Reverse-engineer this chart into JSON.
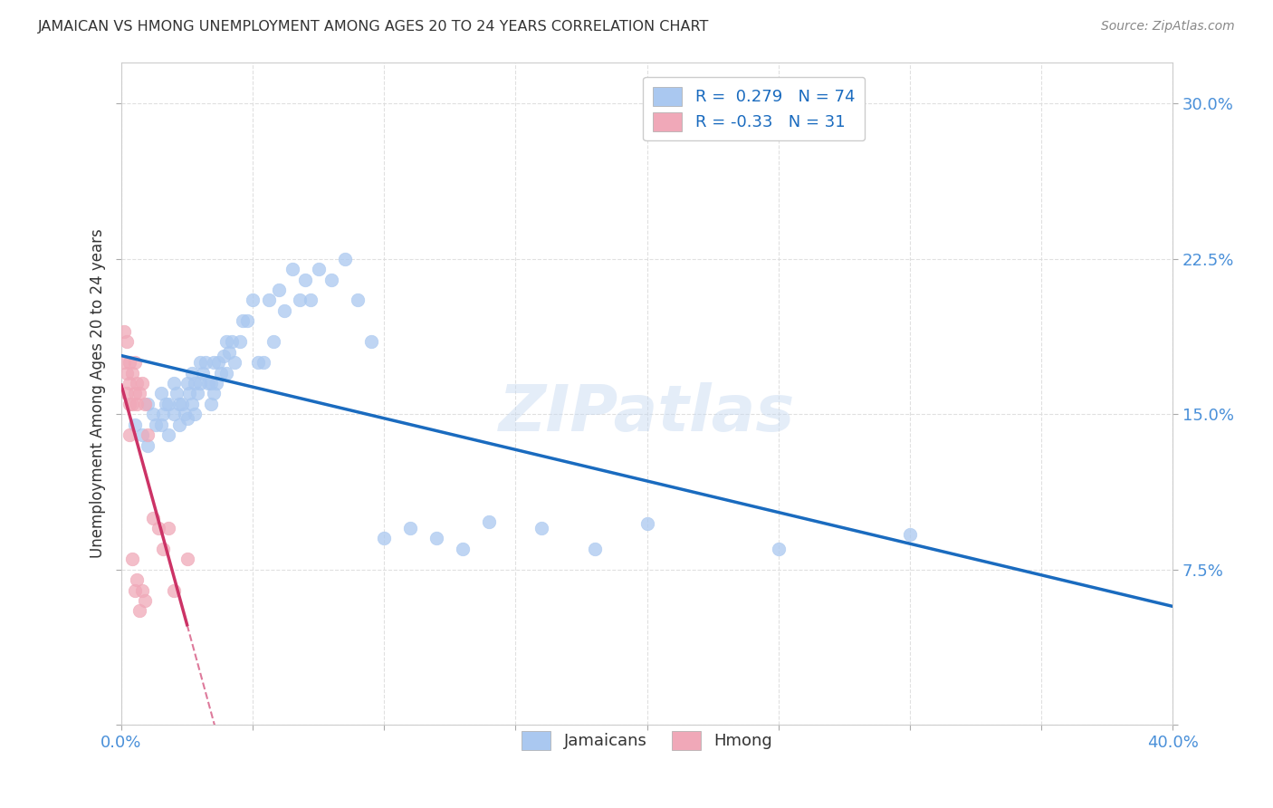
{
  "title": "JAMAICAN VS HMONG UNEMPLOYMENT AMONG AGES 20 TO 24 YEARS CORRELATION CHART",
  "source": "Source: ZipAtlas.com",
  "ylabel": "Unemployment Among Ages 20 to 24 years",
  "xlim": [
    0.0,
    0.4
  ],
  "ylim": [
    0.0,
    0.32
  ],
  "xticks": [
    0.0,
    0.05,
    0.1,
    0.15,
    0.2,
    0.25,
    0.3,
    0.35,
    0.4
  ],
  "yticks": [
    0.0,
    0.075,
    0.15,
    0.225,
    0.3
  ],
  "jamaican_R": 0.279,
  "jamaican_N": 74,
  "hmong_R": -0.33,
  "hmong_N": 31,
  "jamaican_color": "#aac8f0",
  "hmong_color": "#f0a8b8",
  "regression_blue": "#1a6bbf",
  "regression_pink": "#cc3366",
  "jamaican_x": [
    0.005,
    0.008,
    0.01,
    0.01,
    0.012,
    0.013,
    0.015,
    0.015,
    0.016,
    0.017,
    0.018,
    0.018,
    0.02,
    0.02,
    0.021,
    0.022,
    0.022,
    0.023,
    0.024,
    0.025,
    0.025,
    0.026,
    0.027,
    0.027,
    0.028,
    0.028,
    0.029,
    0.03,
    0.03,
    0.031,
    0.032,
    0.033,
    0.034,
    0.034,
    0.035,
    0.035,
    0.036,
    0.037,
    0.038,
    0.039,
    0.04,
    0.04,
    0.041,
    0.042,
    0.043,
    0.045,
    0.046,
    0.048,
    0.05,
    0.052,
    0.054,
    0.056,
    0.058,
    0.06,
    0.062,
    0.065,
    0.068,
    0.07,
    0.072,
    0.075,
    0.08,
    0.085,
    0.09,
    0.095,
    0.1,
    0.11,
    0.12,
    0.13,
    0.14,
    0.16,
    0.18,
    0.2,
    0.25,
    0.3
  ],
  "jamaican_y": [
    0.145,
    0.14,
    0.155,
    0.135,
    0.15,
    0.145,
    0.16,
    0.145,
    0.15,
    0.155,
    0.155,
    0.14,
    0.165,
    0.15,
    0.16,
    0.155,
    0.145,
    0.155,
    0.15,
    0.165,
    0.148,
    0.16,
    0.17,
    0.155,
    0.165,
    0.15,
    0.16,
    0.175,
    0.165,
    0.17,
    0.175,
    0.165,
    0.165,
    0.155,
    0.175,
    0.16,
    0.165,
    0.175,
    0.17,
    0.178,
    0.185,
    0.17,
    0.18,
    0.185,
    0.175,
    0.185,
    0.195,
    0.195,
    0.205,
    0.175,
    0.175,
    0.205,
    0.185,
    0.21,
    0.2,
    0.22,
    0.205,
    0.215,
    0.205,
    0.22,
    0.215,
    0.225,
    0.205,
    0.185,
    0.09,
    0.095,
    0.09,
    0.085,
    0.098,
    0.095,
    0.085,
    0.097,
    0.085,
    0.092
  ],
  "hmong_x": [
    0.001,
    0.001,
    0.002,
    0.002,
    0.002,
    0.003,
    0.003,
    0.003,
    0.003,
    0.004,
    0.004,
    0.004,
    0.005,
    0.005,
    0.005,
    0.006,
    0.006,
    0.006,
    0.007,
    0.007,
    0.008,
    0.008,
    0.009,
    0.009,
    0.01,
    0.012,
    0.014,
    0.016,
    0.018,
    0.02,
    0.025
  ],
  "hmong_y": [
    0.19,
    0.175,
    0.185,
    0.17,
    0.16,
    0.175,
    0.165,
    0.155,
    0.14,
    0.17,
    0.155,
    0.08,
    0.175,
    0.16,
    0.065,
    0.165,
    0.155,
    0.07,
    0.16,
    0.055,
    0.165,
    0.065,
    0.155,
    0.06,
    0.14,
    0.1,
    0.095,
    0.085,
    0.095,
    0.065,
    0.08
  ],
  "watermark": "ZIPatlas",
  "background_color": "#ffffff",
  "grid_color": "#dddddd"
}
